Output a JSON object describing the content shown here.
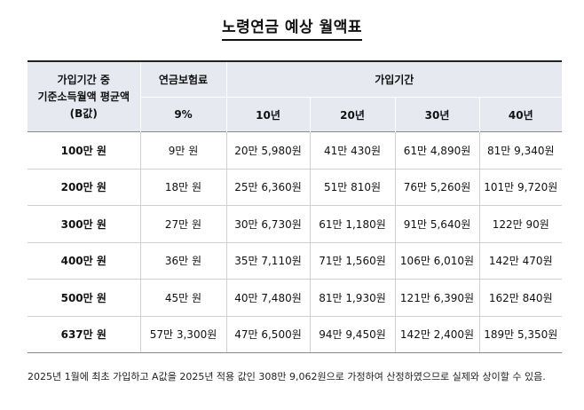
{
  "title": "노령연금 예상 월액표",
  "header": {
    "base_line1": "가입기간 중",
    "base_line2": "기준소득월액 평균액",
    "base_line3": "(B값)",
    "rate_label": "연금보험료",
    "rate_value": "9%",
    "period_label": "가입기간",
    "years": [
      "10년",
      "20년",
      "30년",
      "40년"
    ]
  },
  "rows": [
    {
      "income": "100만 원",
      "premium": "9만 원",
      "y10": "20만 5,980원",
      "y20": "41만 430원",
      "y30": "61만 4,890원",
      "y40": "81만 9,340원"
    },
    {
      "income": "200만 원",
      "premium": "18만 원",
      "y10": "25만 6,360원",
      "y20": "51만 810원",
      "y30": "76만 5,260원",
      "y40": "101만 9,720원"
    },
    {
      "income": "300만 원",
      "premium": "27만 원",
      "y10": "30만 6,730원",
      "y20": "61만 1,180원",
      "y30": "91만 5,640원",
      "y40": "122만 90원"
    },
    {
      "income": "400만 원",
      "premium": "36만 원",
      "y10": "35만 7,110원",
      "y20": "71만 1,560원",
      "y30": "106만 6,010원",
      "y40": "142만 470원"
    },
    {
      "income": "500만 원",
      "premium": "45만 원",
      "y10": "40만 7,480원",
      "y20": "81만 1,930원",
      "y30": "121만 6,390원",
      "y40": "162만 840원"
    },
    {
      "income": "637만 원",
      "premium": "57만 3,300원",
      "y10": "47만 6,500원",
      "y20": "94만 9,450원",
      "y30": "142만 2,400원",
      "y40": "189만 5,350원"
    }
  ],
  "note": "2025년 1월에 최초 가입하고 A값을 2025년 적용 값인 308만 9,062원으로 가정하여 산정하였으므로 실제와 상이할 수 있음."
}
